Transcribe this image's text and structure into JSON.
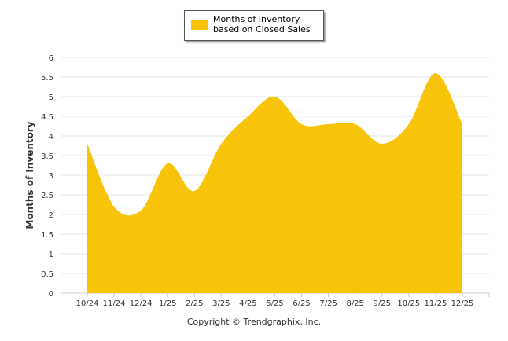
{
  "chart_data": {
    "type": "area",
    "title": "",
    "legend": {
      "label": "Months of Inventory based on Closed Sales",
      "placement": "top-center"
    },
    "ylabel": "Months of Inventory",
    "xlabel": "",
    "ylim": [
      0,
      6
    ],
    "yticks": [
      "0",
      "0.5",
      "1",
      "1.5",
      "2",
      "2.5",
      "3",
      "3.5",
      "4",
      "4.5",
      "5",
      "5.5",
      "6"
    ],
    "categories": [
      "10/24",
      "11/24",
      "12/24",
      "1/25",
      "2/25",
      "3/25",
      "4/25",
      "5/25",
      "6/25",
      "7/25",
      "8/25",
      "9/25",
      "10/25",
      "11/25",
      "12/25"
    ],
    "series": [
      {
        "name": "Months of Inventory based on Closed Sales",
        "color": "#f7c40a",
        "values": [
          3.8,
          2.2,
          2.1,
          3.3,
          2.6,
          3.8,
          4.5,
          5.0,
          4.3,
          4.3,
          4.3,
          3.8,
          4.3,
          5.6,
          4.3
        ]
      }
    ],
    "grid": true
  },
  "footer": {
    "copyright": "Copyright © Trendgraphix, Inc."
  }
}
